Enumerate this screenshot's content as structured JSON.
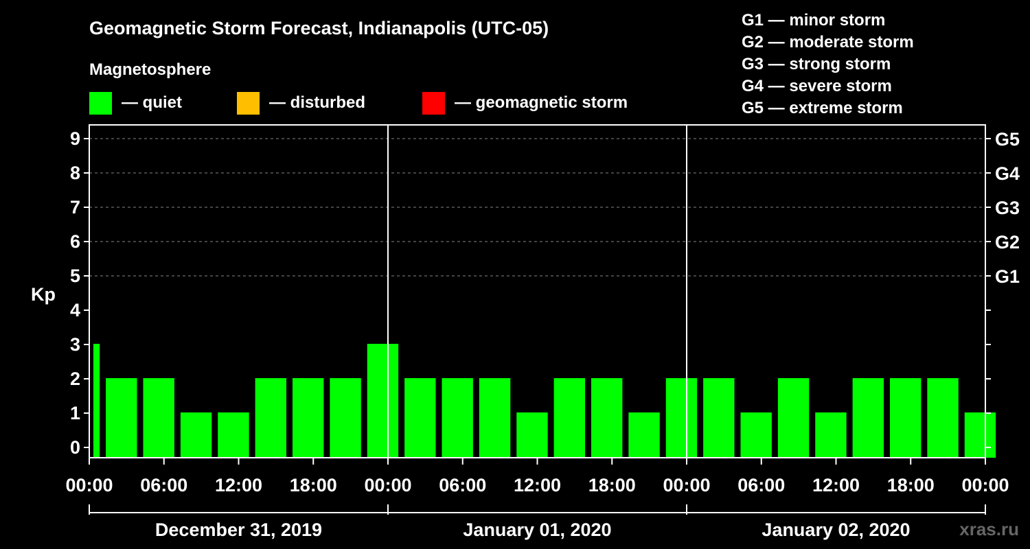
{
  "chart_data": {
    "type": "bar",
    "title": "Geomagnetic Storm Forecast, Indianapolis (UTC-05)",
    "subtitle": "Magnetosphere",
    "ylabel": "Kp",
    "ylim": [
      0,
      9
    ],
    "y_ticks": [
      "0",
      "1",
      "2",
      "3",
      "4",
      "5",
      "6",
      "7",
      "8",
      "9"
    ],
    "right_ticks": [
      {
        "kp": 5,
        "label": "G1"
      },
      {
        "kp": 6,
        "label": "G2"
      },
      {
        "kp": 7,
        "label": "G3"
      },
      {
        "kp": 8,
        "label": "G4"
      },
      {
        "kp": 9,
        "label": "G5"
      }
    ],
    "x_tick_labels": [
      "00:00",
      "06:00",
      "12:00",
      "18:00",
      "00:00",
      "06:00",
      "12:00",
      "18:00",
      "00:00",
      "06:00",
      "12:00",
      "18:00",
      "00:00"
    ],
    "day_labels": [
      "December 31, 2019",
      "January 01, 2020",
      "January 02, 2020"
    ],
    "grid": "dashed horizontal at Kp 5-9",
    "status_legend": [
      {
        "label": "— quiet",
        "color": "#00ff00"
      },
      {
        "label": "— disturbed",
        "color": "#ffbf00"
      },
      {
        "label": "— geomagnetic storm",
        "color": "#ff0000"
      }
    ],
    "storm_scale": [
      "G1 — minor storm",
      "G2 — moderate storm",
      "G3 — strong storm",
      "G4 — severe storm",
      "G5 — extreme storm"
    ],
    "series": [
      {
        "values": [
          3,
          2,
          2,
          1,
          1,
          2,
          2,
          2,
          3,
          2,
          2,
          2,
          1,
          2,
          2,
          1,
          2,
          2,
          1,
          2,
          1,
          2,
          2,
          2,
          1
        ],
        "color": "#00ff00"
      }
    ],
    "watermark": "xras.ru"
  }
}
